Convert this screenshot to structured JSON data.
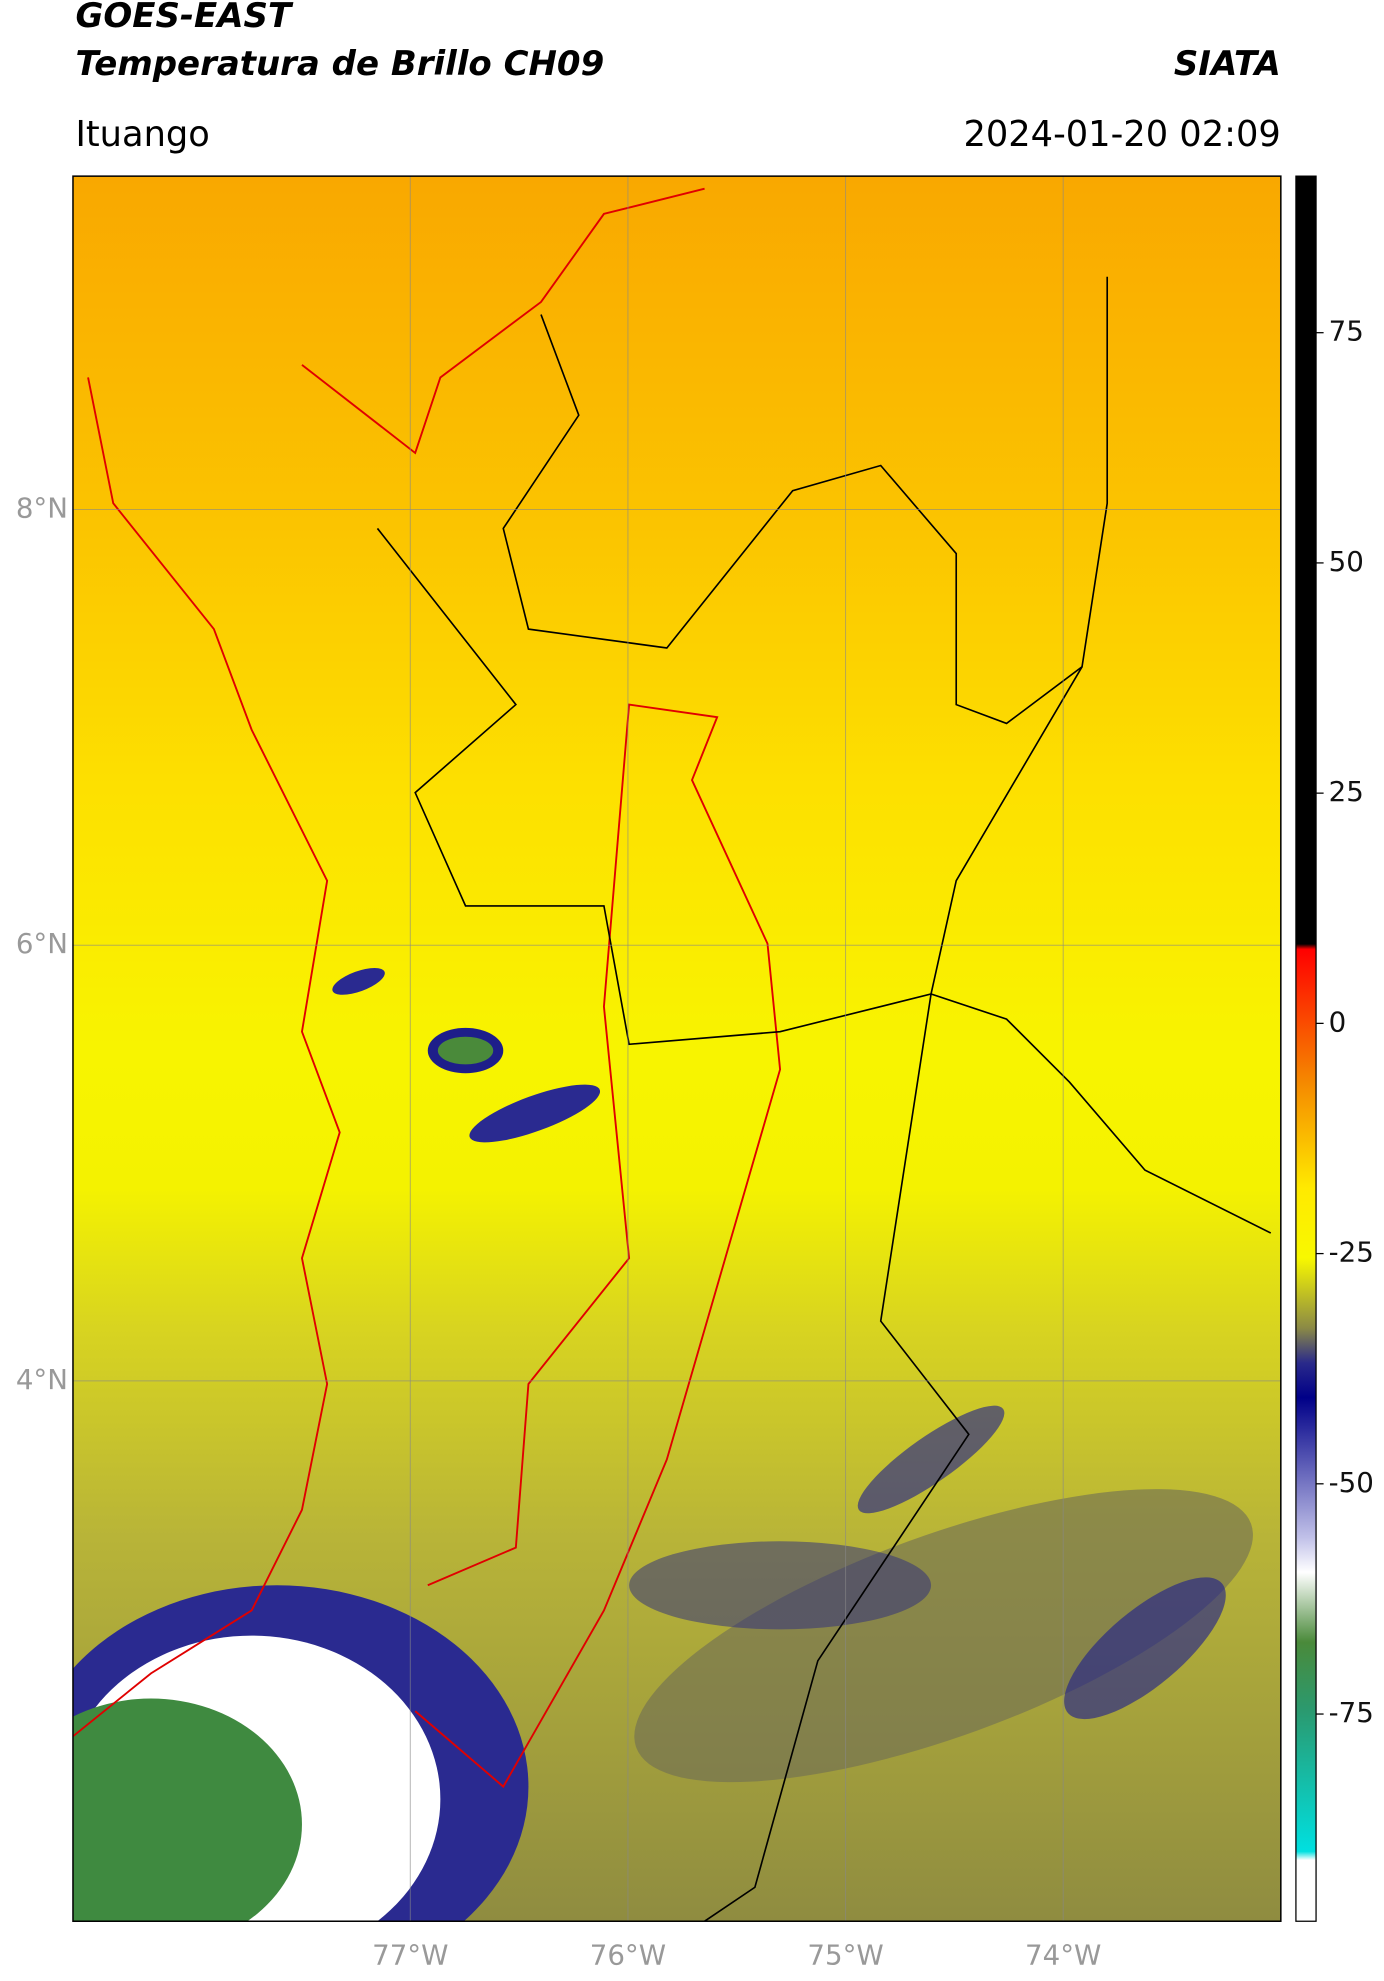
{
  "header": {
    "line1": "GOES-EAST",
    "line2": "Temperatura de Brillo CH09",
    "brand": "SIATA",
    "location": "Ituango",
    "datetime": "2024-01-20 02:09"
  },
  "map": {
    "lon_range": [
      -78.55,
      -73.0
    ],
    "lat_range": [
      1.52,
      9.53
    ],
    "lon_ticks": [
      {
        "value": -77,
        "label": "77°W"
      },
      {
        "value": -76,
        "label": "76°W"
      },
      {
        "value": -75,
        "label": "75°W"
      },
      {
        "value": -74,
        "label": "74°W"
      }
    ],
    "lat_ticks": [
      {
        "value": 8,
        "label": "8°N"
      },
      {
        "value": 6,
        "label": "6°N"
      },
      {
        "value": 4,
        "label": "4°N"
      }
    ],
    "colorbar": {
      "lim": [
        -97.5,
        92
      ],
      "ticks": [
        75,
        50,
        25,
        0,
        -25,
        -50,
        -75
      ]
    }
  }
}
